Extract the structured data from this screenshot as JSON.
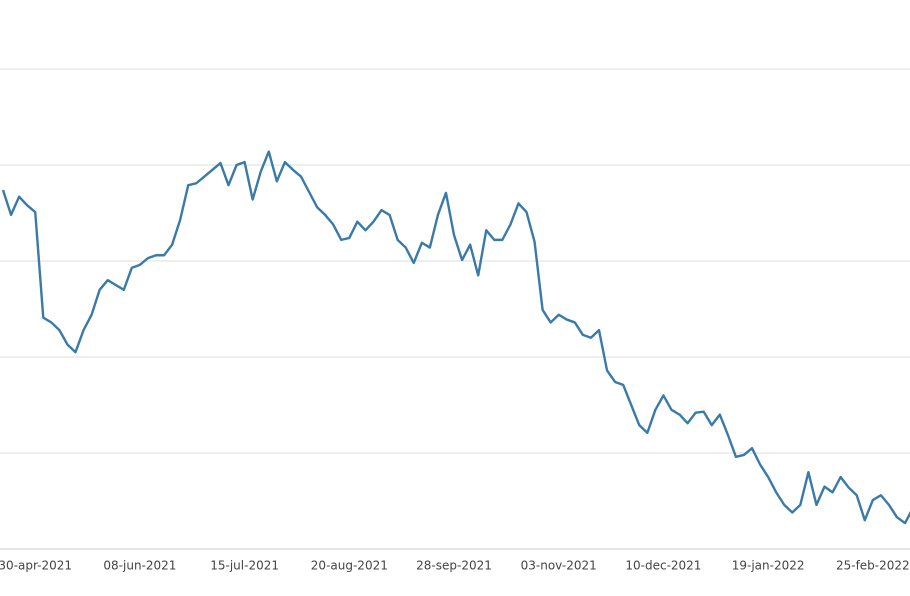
{
  "chart_data": {
    "type": "line",
    "categories": [
      null,
      null,
      null,
      null,
      "30-apr-2021",
      null,
      null,
      null,
      null,
      null,
      null,
      null,
      null,
      null,
      null,
      null,
      null,
      "08-jun-2021",
      null,
      null,
      null,
      null,
      null,
      null,
      null,
      null,
      null,
      null,
      null,
      null,
      "15-jul-2021",
      null,
      null,
      null,
      null,
      null,
      null,
      null,
      null,
      null,
      null,
      null,
      null,
      "20-aug-2021",
      null,
      null,
      null,
      null,
      null,
      null,
      null,
      null,
      null,
      null,
      null,
      null,
      "28-sep-2021",
      null,
      null,
      null,
      null,
      null,
      null,
      null,
      null,
      null,
      null,
      null,
      null,
      "03-nov-2021",
      null,
      null,
      null,
      null,
      null,
      null,
      null,
      null,
      null,
      null,
      null,
      null,
      "10-dec-2021",
      null,
      null,
      null,
      null,
      null,
      null,
      null,
      null,
      null,
      null,
      null,
      null,
      "19-jan-2022",
      null,
      null,
      null,
      null,
      null,
      null,
      null,
      null,
      null,
      null,
      null,
      null,
      "25-feb-2022",
      null,
      null,
      null,
      null,
      null
    ],
    "values": [
      3.74,
      3.48,
      3.67,
      3.58,
      3.51,
      2.41,
      2.36,
      2.28,
      2.13,
      2.05,
      2.28,
      2.44,
      2.7,
      2.8,
      2.75,
      2.7,
      2.93,
      2.96,
      3.03,
      3.06,
      3.06,
      3.17,
      3.43,
      3.79,
      3.81,
      3.88,
      3.95,
      4.02,
      3.79,
      4.0,
      4.03,
      3.64,
      3.93,
      4.14,
      3.83,
      4.03,
      3.95,
      3.88,
      3.72,
      3.56,
      3.48,
      3.38,
      3.22,
      3.24,
      3.41,
      3.32,
      3.41,
      3.53,
      3.48,
      3.22,
      3.14,
      2.98,
      3.19,
      3.14,
      3.48,
      3.71,
      3.27,
      3.01,
      3.17,
      2.85,
      3.32,
      3.22,
      3.22,
      3.38,
      3.6,
      3.51,
      3.2,
      2.49,
      2.36,
      2.44,
      2.39,
      2.36,
      2.23,
      2.2,
      2.28,
      1.86,
      1.74,
      1.71,
      1.5,
      1.29,
      1.21,
      1.45,
      1.6,
      1.45,
      1.4,
      1.31,
      1.42,
      1.43,
      1.29,
      1.4,
      1.19,
      0.96,
      0.98,
      1.05,
      0.88,
      0.75,
      0.59,
      0.46,
      0.38,
      0.46,
      0.8,
      0.46,
      0.65,
      0.59,
      0.75,
      0.64,
      0.56,
      0.3,
      0.51,
      0.56,
      0.46,
      0.33,
      0.27,
      0.43
    ],
    "color": "#3a7aa8",
    "ylim": [
      0,
      5.6
    ],
    "yticks": [
      0,
      1,
      2,
      3,
      4,
      5
    ],
    "grid": true
  }
}
